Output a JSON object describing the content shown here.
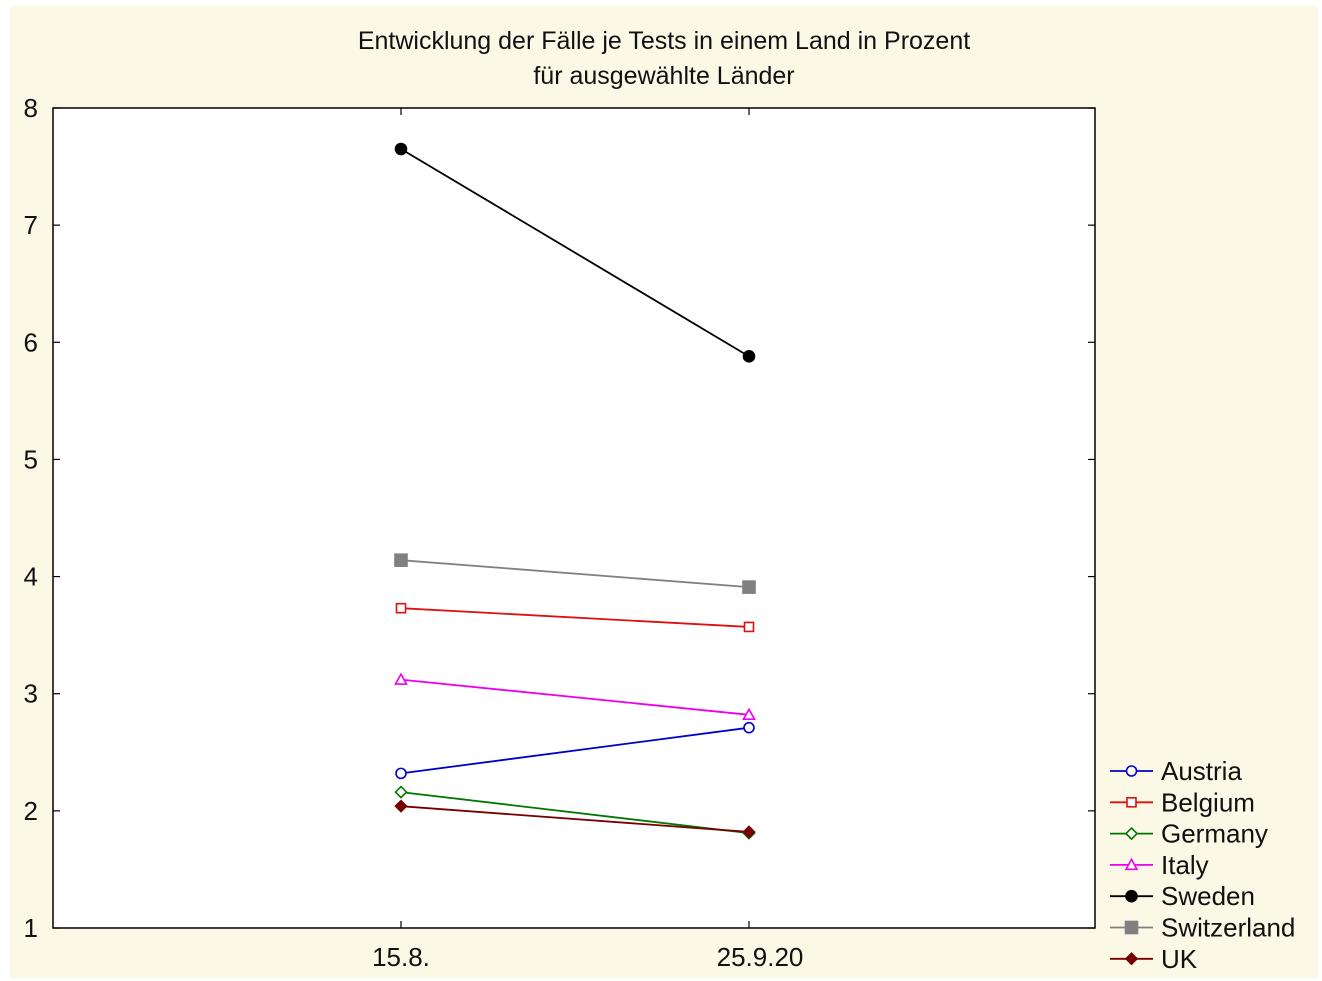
{
  "chart_data": {
    "type": "line",
    "title": "Entwicklung der Fälle je Tests in einem Land in Prozent",
    "subtitle": "für ausgewählte Länder",
    "xlabel": "",
    "ylabel": "",
    "categories": [
      "15.8.",
      "25.9.20"
    ],
    "ylim": [
      1,
      8
    ],
    "yticks": [
      1,
      2,
      3,
      4,
      5,
      6,
      7,
      8
    ],
    "grid": true,
    "legend_position": "bottom-right",
    "series": [
      {
        "name": "Austria",
        "values": [
          2.32,
          2.71
        ],
        "color": "#0000cc",
        "marker": "circle-open"
      },
      {
        "name": "Belgium",
        "values": [
          3.73,
          3.57
        ],
        "color": "#dd1111",
        "marker": "square-open"
      },
      {
        "name": "Germany",
        "values": [
          2.16,
          1.81
        ],
        "color": "#007700",
        "marker": "diamond-open"
      },
      {
        "name": "Italy",
        "values": [
          3.12,
          2.82
        ],
        "color": "#ee00ee",
        "marker": "triangle-open"
      },
      {
        "name": "Sweden",
        "values": [
          7.65,
          5.88
        ],
        "color": "#000000",
        "marker": "circle-filled"
      },
      {
        "name": "Switzerland",
        "values": [
          4.14,
          3.91
        ],
        "color": "#808080",
        "marker": "square-filled"
      },
      {
        "name": "UK",
        "values": [
          2.04,
          1.82
        ],
        "color": "#770000",
        "marker": "diamond-filled"
      }
    ]
  }
}
